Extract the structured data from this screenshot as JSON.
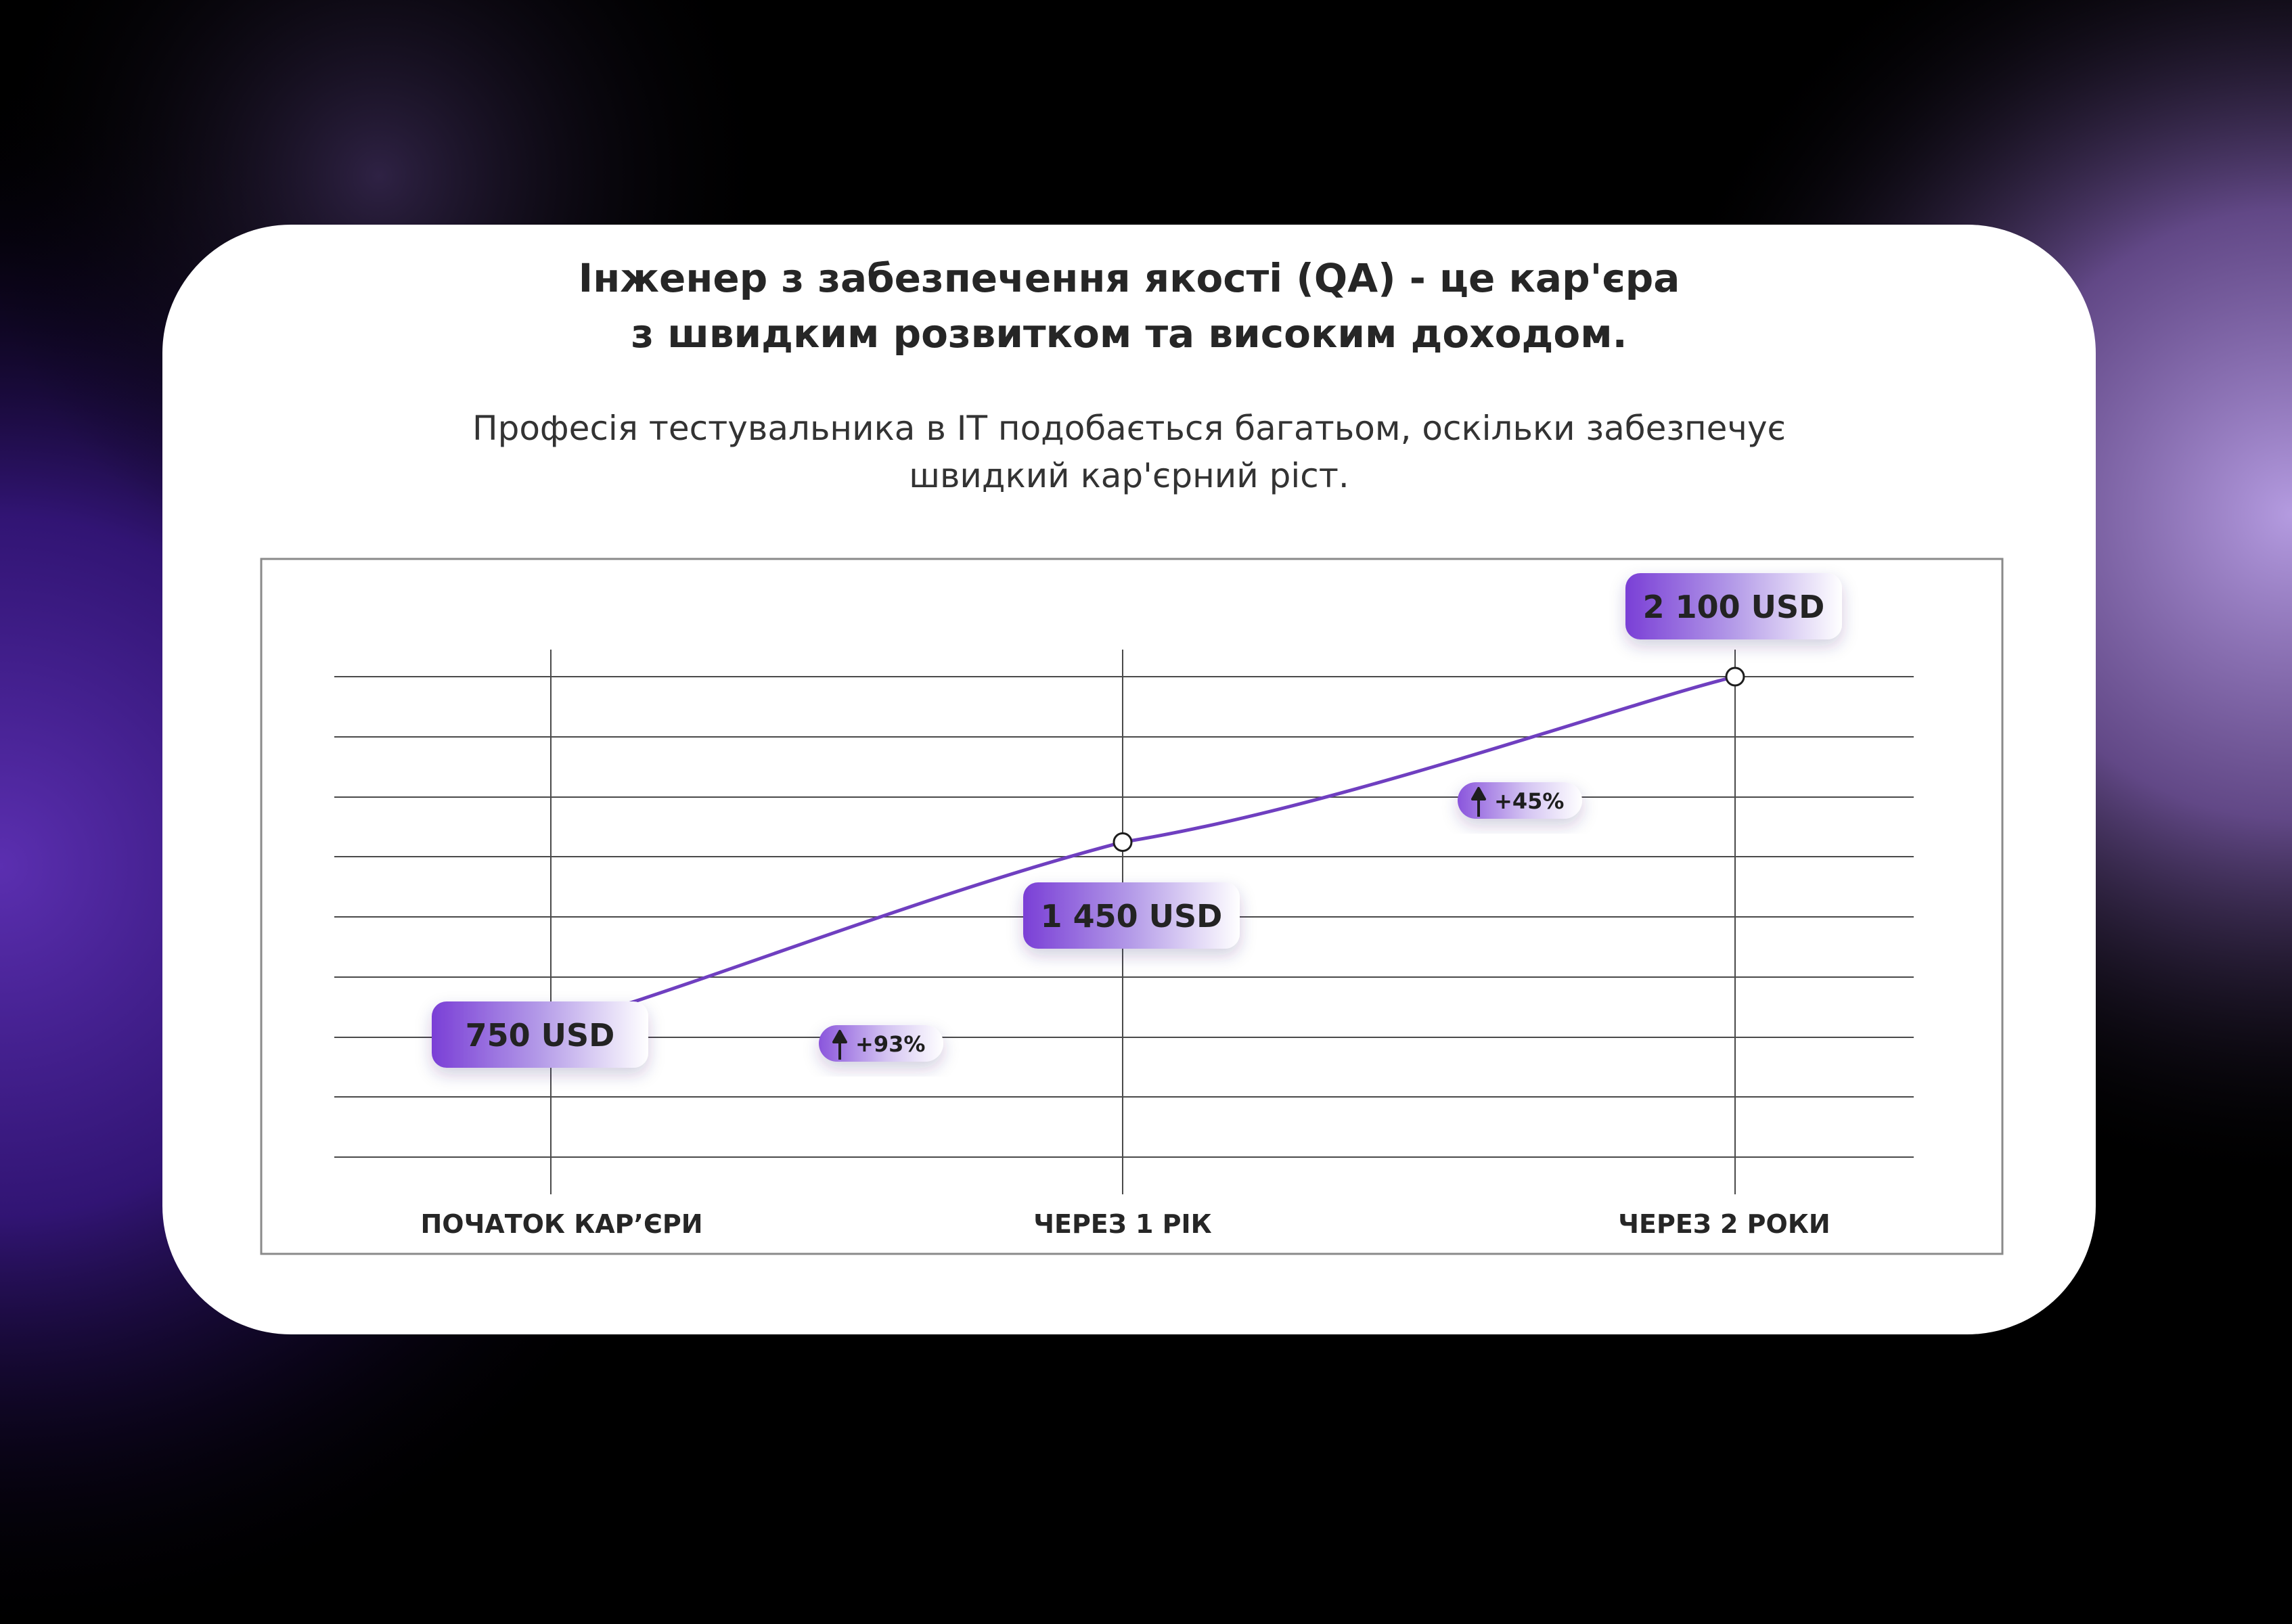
{
  "header": {
    "title_line1": "Інженер з забезпечення якості (QA) - це кар'єра",
    "title_line2": "з швидким розвитком та високим доходом.",
    "subtitle_line1": "Професія тестувальника в IT подобається багатьом, оскільки забезпечує",
    "subtitle_line2": "швидкий кар'єрний ріст."
  },
  "colors": {
    "accent": "#7a3fd6",
    "accent_light": "#ffffff",
    "line": "#6f3fc0",
    "grid": "#4a4a4a",
    "text_dark": "#262626"
  },
  "chart_data": {
    "type": "line",
    "categories": [
      "ПОЧАТОК КАР’ЄРИ",
      "ЧЕРЕЗ 1 РІК",
      "ЧЕРЕЗ 2 РОКИ"
    ],
    "series": [
      {
        "values": [
          750,
          1450,
          2100
        ]
      }
    ],
    "value_labels": [
      "750 USD",
      "1 450 USD",
      "2 100 USD"
    ],
    "growth_labels": [
      "+93%",
      "+45%"
    ],
    "ylim": [
      0,
      2100
    ],
    "grid": true,
    "unit": "USD"
  }
}
